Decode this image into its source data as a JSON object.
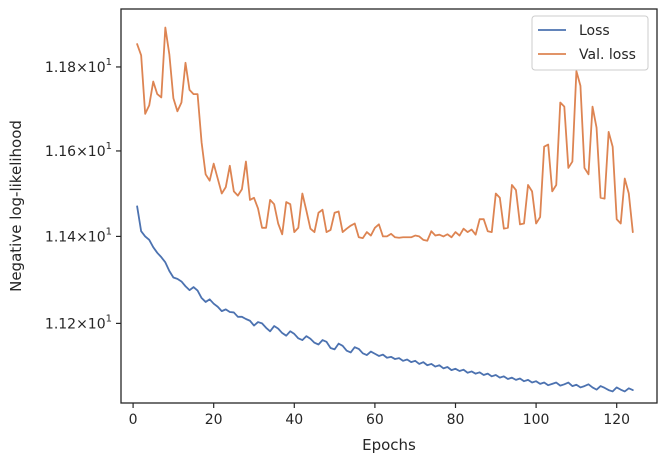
{
  "chart_data": {
    "type": "line",
    "xlabel": "Epochs",
    "ylabel": "Negative log-likelihood",
    "xlim": [
      -3,
      130
    ],
    "ylim": [
      11.02,
      11.94
    ],
    "y_scale": "log",
    "x_ticks": [
      0,
      20,
      40,
      60,
      80,
      100,
      120
    ],
    "x_tick_labels": [
      "0",
      "20",
      "40",
      "60",
      "80",
      "100",
      "120"
    ],
    "y_ticks": [
      11.2,
      11.4,
      11.6,
      11.8
    ],
    "y_tick_labels": [
      {
        "mantissa": "1.12",
        "base": "10",
        "exp": "1"
      },
      {
        "mantissa": "1.14",
        "base": "10",
        "exp": "1"
      },
      {
        "mantissa": "1.16",
        "base": "10",
        "exp": "1"
      },
      {
        "mantissa": "1.18",
        "base": "10",
        "exp": "1"
      }
    ],
    "grid": false,
    "legend_position": "top-right",
    "series": [
      {
        "name": "Loss",
        "color": "#4c72b0",
        "x": [
          1,
          2,
          3,
          4,
          5,
          6,
          7,
          8,
          9,
          10,
          11,
          12,
          13,
          14,
          15,
          16,
          17,
          18,
          19,
          20,
          21,
          22,
          23,
          24,
          25,
          26,
          27,
          28,
          29,
          30,
          31,
          32,
          33,
          34,
          35,
          36,
          37,
          38,
          39,
          40,
          41,
          42,
          43,
          44,
          45,
          46,
          47,
          48,
          49,
          50,
          51,
          52,
          53,
          54,
          55,
          56,
          57,
          58,
          59,
          60,
          61,
          62,
          63,
          64,
          65,
          66,
          67,
          68,
          69,
          70,
          71,
          72,
          73,
          74,
          75,
          76,
          77,
          78,
          79,
          80,
          81,
          82,
          83,
          84,
          85,
          86,
          87,
          88,
          89,
          90,
          91,
          92,
          93,
          94,
          95,
          96,
          97,
          98,
          99,
          100,
          101,
          102,
          103,
          104,
          105,
          106,
          107,
          108,
          109,
          110,
          111,
          112,
          113,
          114,
          115,
          116,
          117,
          118,
          119,
          120,
          121,
          122,
          123,
          124
        ],
        "values": [
          11.47,
          11.412,
          11.4,
          11.392,
          11.375,
          11.362,
          11.352,
          11.34,
          11.32,
          11.305,
          11.302,
          11.296,
          11.285,
          11.276,
          11.283,
          11.275,
          11.258,
          11.249,
          11.255,
          11.245,
          11.238,
          11.228,
          11.232,
          11.226,
          11.225,
          11.215,
          11.215,
          11.21,
          11.206,
          11.195,
          11.203,
          11.2,
          11.19,
          11.182,
          11.194,
          11.188,
          11.178,
          11.172,
          11.182,
          11.176,
          11.166,
          11.162,
          11.171,
          11.165,
          11.156,
          11.152,
          11.162,
          11.158,
          11.144,
          11.141,
          11.154,
          11.149,
          11.138,
          11.134,
          11.146,
          11.142,
          11.132,
          11.128,
          11.136,
          11.131,
          11.126,
          11.129,
          11.122,
          11.124,
          11.119,
          11.121,
          11.115,
          11.118,
          11.112,
          11.115,
          11.108,
          11.112,
          11.105,
          11.108,
          11.102,
          11.105,
          11.098,
          11.101,
          11.094,
          11.097,
          11.092,
          11.095,
          11.088,
          11.091,
          11.086,
          11.089,
          11.083,
          11.086,
          11.08,
          11.083,
          11.077,
          11.08,
          11.074,
          11.077,
          11.072,
          11.075,
          11.069,
          11.072,
          11.066,
          11.069,
          11.063,
          11.066,
          11.06,
          11.063,
          11.066,
          11.059,
          11.062,
          11.066,
          11.058,
          11.061,
          11.055,
          11.058,
          11.062,
          11.055,
          11.05,
          11.058,
          11.054,
          11.049,
          11.046,
          11.055,
          11.05,
          11.046,
          11.053,
          11.049
        ]
      },
      {
        "name": "Val. loss",
        "color": "#dd8452",
        "x": [
          1,
          2,
          3,
          4,
          5,
          6,
          7,
          8,
          9,
          10,
          11,
          12,
          13,
          14,
          15,
          16,
          17,
          18,
          19,
          20,
          21,
          22,
          23,
          24,
          25,
          26,
          27,
          28,
          29,
          30,
          31,
          32,
          33,
          34,
          35,
          36,
          37,
          38,
          39,
          40,
          41,
          42,
          43,
          44,
          45,
          46,
          47,
          48,
          49,
          50,
          51,
          52,
          53,
          54,
          55,
          56,
          57,
          58,
          59,
          60,
          61,
          62,
          63,
          64,
          65,
          66,
          67,
          68,
          69,
          70,
          71,
          72,
          73,
          74,
          75,
          76,
          77,
          78,
          79,
          80,
          81,
          82,
          83,
          84,
          85,
          86,
          87,
          88,
          89,
          90,
          91,
          92,
          93,
          94,
          95,
          96,
          97,
          98,
          99,
          100,
          101,
          102,
          103,
          104,
          105,
          106,
          107,
          108,
          109,
          110,
          111,
          112,
          113,
          114,
          115,
          116,
          117,
          118,
          119,
          120,
          121,
          122,
          123,
          124
        ],
        "values": [
          11.855,
          11.828,
          11.688,
          11.708,
          11.765,
          11.735,
          11.727,
          11.895,
          11.83,
          11.725,
          11.694,
          11.715,
          11.81,
          11.745,
          11.735,
          11.735,
          11.62,
          11.545,
          11.53,
          11.57,
          11.535,
          11.5,
          11.515,
          11.565,
          11.505,
          11.495,
          11.51,
          11.575,
          11.485,
          11.49,
          11.465,
          11.42,
          11.42,
          11.485,
          11.475,
          11.43,
          11.405,
          11.48,
          11.475,
          11.41,
          11.42,
          11.5,
          11.46,
          11.418,
          11.41,
          11.455,
          11.462,
          11.41,
          11.415,
          11.455,
          11.458,
          11.41,
          11.418,
          11.425,
          11.43,
          11.398,
          11.396,
          11.41,
          11.402,
          11.42,
          11.428,
          11.4,
          11.4,
          11.406,
          11.398,
          11.397,
          11.398,
          11.398,
          11.398,
          11.402,
          11.4,
          11.392,
          11.39,
          11.412,
          11.402,
          11.404,
          11.4,
          11.405,
          11.398,
          11.41,
          11.402,
          11.418,
          11.41,
          11.416,
          11.404,
          11.44,
          11.44,
          11.412,
          11.41,
          11.5,
          11.49,
          11.418,
          11.42,
          11.52,
          11.508,
          11.428,
          11.43,
          11.52,
          11.505,
          11.43,
          11.445,
          11.61,
          11.615,
          11.505,
          11.52,
          11.715,
          11.705,
          11.56,
          11.575,
          11.79,
          11.755,
          11.56,
          11.545,
          11.705,
          11.655,
          11.49,
          11.488,
          11.645,
          11.61,
          11.44,
          11.43,
          11.535,
          11.5,
          11.41
        ]
      }
    ]
  }
}
